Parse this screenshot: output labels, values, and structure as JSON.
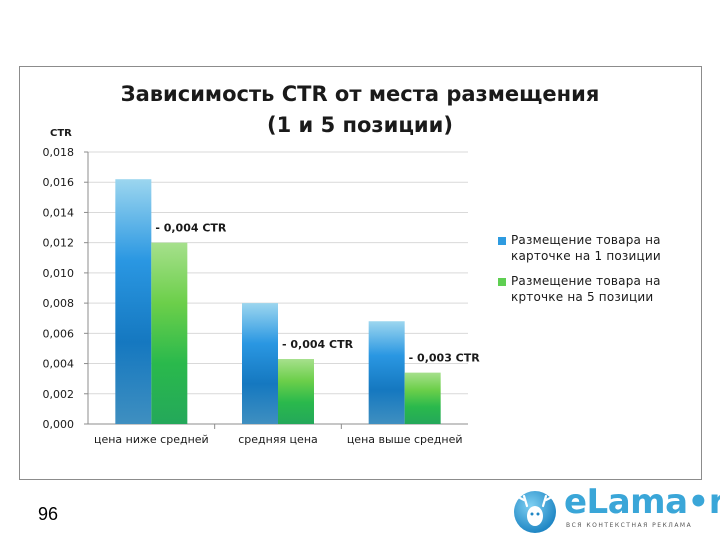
{
  "slide": {
    "number": "96"
  },
  "logo": {
    "text": "eLama•ru",
    "subtitle": "ВСЯ КОНТЕКСТНАЯ РЕКЛАМА"
  },
  "colors": {
    "series1": "#2e9be0",
    "series2": "#5fcf52",
    "axis": "#8c8c8c"
  },
  "chart_data": {
    "type": "bar",
    "title": "Зависимость CTR от места размещения",
    "subtitle": "(1 и 5 позиции)",
    "ylabel": "CTR",
    "xlabel": "",
    "ylim": [
      0,
      0.018
    ],
    "yticks": [
      "0,000",
      "0,002",
      "0,004",
      "0,006",
      "0,008",
      "0,010",
      "0,012",
      "0,014",
      "0,016",
      "0,018"
    ],
    "categories": [
      "цена ниже средней",
      "средняя цена",
      "цена выше средней"
    ],
    "series": [
      {
        "name": "Размещение товара на карточке на 1 позиции",
        "values": [
          0.0162,
          0.008,
          0.0068
        ]
      },
      {
        "name": "Размещение товара на крточке на 5 позиции",
        "values": [
          0.012,
          0.0043,
          0.0034
        ]
      }
    ],
    "annotations": [
      "- 0,004 CTR",
      "- 0,004 CTR",
      "- 0,003 CTR"
    ],
    "legend_position": "right",
    "grid": true
  }
}
